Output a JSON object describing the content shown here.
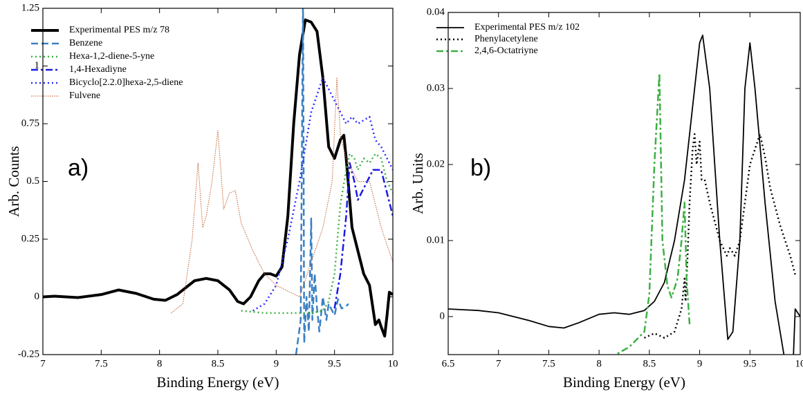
{
  "chart_data": [
    {
      "type": "line",
      "annotation": "a)",
      "x_label": "Binding Energy (eV)",
      "y_label": "Arb. Counts",
      "xlim": [
        7,
        10
      ],
      "ylim": [
        -0.25,
        1.25
      ],
      "xticks": [
        7,
        7.5,
        8,
        8.5,
        9,
        9.5,
        10
      ],
      "yticks": [
        -0.25,
        0,
        0.25,
        0.5,
        0.75,
        1,
        1.25
      ],
      "legend": "upper left",
      "series": [
        {
          "name": "Experimental PES m/z 78",
          "color": "#000000",
          "style": "bold",
          "x": [
            7,
            7.1,
            7.3,
            7.5,
            7.65,
            7.8,
            7.95,
            8.05,
            8.15,
            8.3,
            8.4,
            8.5,
            8.6,
            8.67,
            8.72,
            8.78,
            8.85,
            8.9,
            8.95,
            9.0,
            9.05,
            9.1,
            9.15,
            9.2,
            9.25,
            9.3,
            9.35,
            9.4,
            9.45,
            9.5,
            9.55,
            9.58,
            9.6,
            9.65,
            9.7,
            9.75,
            9.8,
            9.85,
            9.88,
            9.9,
            9.93,
            9.95,
            9.97,
            10
          ],
          "values": [
            0,
            0.003,
            -0.003,
            0.01,
            0.03,
            0.015,
            -0.01,
            -0.015,
            0.01,
            0.07,
            0.08,
            0.07,
            0.03,
            -0.02,
            -0.03,
            0,
            0.07,
            0.1,
            0.1,
            0.09,
            0.13,
            0.35,
            0.75,
            1.05,
            1.2,
            1.19,
            1.15,
            0.95,
            0.65,
            0.6,
            0.68,
            0.7,
            0.6,
            0.3,
            0.2,
            0.1,
            0.05,
            -0.12,
            -0.1,
            -0.13,
            -0.17,
            -0.08,
            0.02,
            0.01
          ]
        },
        {
          "name": "Benzene",
          "color": "#3a80c4",
          "style": "dashed",
          "x": [
            9.17,
            9.21,
            9.23,
            9.24,
            9.26,
            9.28,
            9.3,
            9.31,
            9.33,
            9.35,
            9.37,
            9.4,
            9.43,
            9.45,
            9.5,
            9.53,
            9.56,
            9.6,
            9.62
          ],
          "values": [
            -0.25,
            -0.1,
            1.3,
            -0.2,
            0,
            -0.15,
            0.34,
            -0.1,
            0.1,
            -0.05,
            -0.15,
            0,
            -0.1,
            -0.03,
            -0.08,
            -0.01,
            -0.05,
            -0.04,
            -0.03
          ]
        },
        {
          "name": "Hexa-1,2-diene-5-yne",
          "color": "#3cb043",
          "style": "dotted",
          "x": [
            8.7,
            8.9,
            9.1,
            9.3,
            9.4,
            9.45,
            9.5,
            9.55,
            9.6,
            9.63,
            9.67,
            9.7,
            9.75,
            9.8,
            9.85,
            9.9,
            9.95,
            10
          ],
          "values": [
            -0.06,
            -0.07,
            -0.07,
            -0.07,
            -0.06,
            -0.02,
            0.1,
            0.4,
            0.55,
            0.62,
            0.6,
            0.55,
            0.6,
            0.58,
            0.62,
            0.6,
            0.5,
            0.45
          ]
        },
        {
          "name": "1,4-Hexadiyne",
          "color": "#1a1ae6",
          "style": "dash-dot",
          "x": [
            9.5,
            9.55,
            9.6,
            9.63,
            9.67,
            9.7,
            9.73,
            9.78,
            9.83,
            9.9,
            9.95,
            10
          ],
          "values": [
            -0.05,
            0.1,
            0.35,
            0.58,
            0.5,
            0.42,
            0.45,
            0.5,
            0.55,
            0.55,
            0.45,
            0.35
          ]
        },
        {
          "name": "Bicyclo[2.2.0]hexa-2,5-diene",
          "color": "#2b2bff",
          "style": "dotted",
          "x": [
            8.8,
            8.9,
            9.0,
            9.1,
            9.2,
            9.3,
            9.4,
            9.45,
            9.5,
            9.55,
            9.6,
            9.65,
            9.7,
            9.8,
            9.85,
            9.9,
            9.95,
            10
          ],
          "values": [
            -0.06,
            -0.03,
            0.05,
            0.25,
            0.5,
            0.8,
            0.95,
            0.9,
            0.85,
            0.8,
            0.75,
            0.78,
            0.75,
            0.78,
            0.68,
            0.65,
            0.6,
            0.55
          ]
        },
        {
          "name": "Fulvene",
          "color": "#c05a28",
          "style": "fine",
          "x": [
            8.1,
            8.2,
            8.28,
            8.33,
            8.37,
            8.4,
            8.45,
            8.5,
            8.55,
            8.6,
            8.65,
            8.7,
            8.8,
            8.9,
            9.0,
            9.2,
            9.4,
            9.48,
            9.52,
            9.55,
            9.6,
            9.7,
            9.8,
            9.9,
            10
          ],
          "values": [
            -0.07,
            -0.03,
            0.25,
            0.58,
            0.3,
            0.35,
            0.5,
            0.72,
            0.38,
            0.45,
            0.46,
            0.32,
            0.2,
            0.1,
            0.05,
            0,
            0.3,
            0.5,
            0.95,
            0.7,
            0.6,
            0.5,
            0.5,
            0.3,
            0.15
          ]
        }
      ]
    },
    {
      "type": "line",
      "annotation": "b)",
      "x_label": "Binding Energy (eV)",
      "y_label": "Arb. Units",
      "xlim": [
        6.5,
        10
      ],
      "ylim": [
        -0.005,
        0.04
      ],
      "xticks": [
        6.5,
        7,
        7.5,
        8,
        8.5,
        9,
        9.5,
        10
      ],
      "yticks": [
        0,
        0.01,
        0.02,
        0.03,
        0.04
      ],
      "legend": "upper left",
      "series": [
        {
          "name": "Experimental PES m/z 102",
          "color": "#000000",
          "style": "solid",
          "x": [
            6.5,
            6.8,
            7.0,
            7.3,
            7.5,
            7.65,
            7.8,
            8.0,
            8.15,
            8.3,
            8.45,
            8.55,
            8.65,
            8.75,
            8.85,
            8.95,
            9.0,
            9.03,
            9.1,
            9.2,
            9.28,
            9.33,
            9.4,
            9.45,
            9.5,
            9.55,
            9.65,
            9.75,
            9.85,
            9.93,
            9.95,
            10
          ],
          "values": [
            0.001,
            0.0008,
            0.0005,
            -0.0005,
            -0.0013,
            -0.0015,
            -0.0008,
            0.0003,
            0.0005,
            0.0003,
            0.0008,
            0.002,
            0.0045,
            0.01,
            0.018,
            0.03,
            0.036,
            0.037,
            0.03,
            0.01,
            -0.003,
            -0.002,
            0.01,
            0.03,
            0.036,
            0.03,
            0.015,
            0.002,
            -0.006,
            -0.006,
            0.001,
            0
          ]
        },
        {
          "name": "Phenylacetylene",
          "color": "#000000",
          "style": "dotted",
          "x": [
            8.45,
            8.55,
            8.65,
            8.75,
            8.82,
            8.85,
            8.86,
            8.88,
            8.9,
            8.93,
            8.95,
            8.97,
            9.0,
            9.02,
            9.05,
            9.1,
            9.2,
            9.27,
            9.3,
            9.35,
            9.4,
            9.45,
            9.5,
            9.55,
            9.6,
            9.65,
            9.7,
            9.8,
            9.9,
            9.95
          ],
          "values": [
            -0.0028,
            -0.0022,
            -0.0028,
            -0.002,
            0.001,
            0.005,
            0.002,
            0.008,
            0.015,
            0.022,
            0.024,
            0.02,
            0.023,
            0.018,
            0.018,
            0.015,
            0.01,
            0.008,
            0.009,
            0.008,
            0.01,
            0.015,
            0.02,
            0.022,
            0.024,
            0.021,
            0.017,
            0.012,
            0.008,
            0.0055
          ]
        },
        {
          "name": "2,4,6-Octatriyne",
          "color": "#3cb043",
          "style": "dash-dot",
          "x": [
            8.1,
            8.3,
            8.45,
            8.5,
            8.55,
            8.6,
            8.63,
            8.68,
            8.72,
            8.78,
            8.82,
            8.85,
            8.87,
            8.9
          ],
          "values": [
            -0.0055,
            -0.004,
            -0.002,
            0.003,
            0.02,
            0.032,
            0.01,
            0.004,
            0.0025,
            0.005,
            0.01,
            0.015,
            0.005,
            -0.001
          ]
        }
      ]
    }
  ]
}
